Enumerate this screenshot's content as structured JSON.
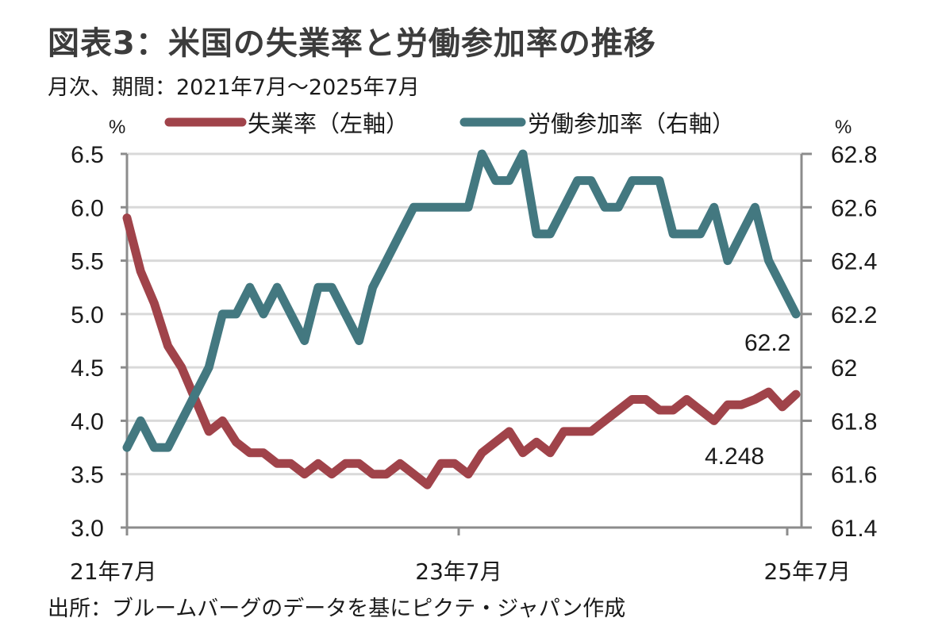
{
  "title": "図表3：米国の失業率と労働参加率の推移",
  "subtitle": "月次、期間：2021年7月～2025年7月",
  "source": "出所：ブルームバーグのデータを基にピクテ・ジャパン作成",
  "chart_data": {
    "type": "line",
    "title": "図表3：米国の失業率と労働参加率の推移",
    "subtitle": "月次、期間：2021年7月～2025年7月",
    "xlabel": "",
    "x_tick_labels": [
      "21年7月",
      "23年7月",
      "25年7月"
    ],
    "left_axis": {
      "unit": "%",
      "ylim": [
        3.0,
        6.5
      ],
      "ticks": [
        "6.5",
        "6.0",
        "5.5",
        "5.0",
        "4.5",
        "4.0",
        "3.5",
        "3.0"
      ]
    },
    "right_axis": {
      "unit": "%",
      "ylim": [
        61.4,
        62.8
      ],
      "ticks": [
        "62.8",
        "62.6",
        "62.4",
        "62.2",
        "62",
        "61.8",
        "61.6",
        "61.4"
      ]
    },
    "grid": "horizontal",
    "legend_position": "top",
    "series": [
      {
        "name": "失業率（左軸）",
        "axis": "left",
        "color": "#a0434a",
        "values": [
          5.9,
          5.4,
          5.1,
          4.7,
          4.5,
          4.2,
          3.9,
          4.0,
          3.8,
          3.7,
          3.7,
          3.6,
          3.6,
          3.5,
          3.6,
          3.5,
          3.6,
          3.6,
          3.5,
          3.5,
          3.6,
          3.5,
          3.4,
          3.6,
          3.6,
          3.5,
          3.7,
          3.8,
          3.9,
          3.7,
          3.8,
          3.7,
          3.9,
          3.9,
          3.9,
          4.0,
          4.1,
          4.2,
          4.2,
          4.1,
          4.1,
          4.2,
          4.1,
          4.0,
          4.15,
          4.15,
          4.2,
          4.27,
          4.13,
          4.248
        ],
        "end_label": "4.248"
      },
      {
        "name": "労働参加率（右軸）",
        "axis": "right",
        "color": "#437880",
        "values": [
          61.7,
          61.8,
          61.7,
          61.7,
          61.8,
          61.9,
          62.0,
          62.2,
          62.2,
          62.3,
          62.2,
          62.3,
          62.2,
          62.1,
          62.3,
          62.3,
          62.2,
          62.1,
          62.3,
          62.4,
          62.5,
          62.6,
          62.6,
          62.6,
          62.6,
          62.6,
          62.8,
          62.7,
          62.7,
          62.8,
          62.5,
          62.5,
          62.6,
          62.7,
          62.7,
          62.6,
          62.6,
          62.7,
          62.7,
          62.7,
          62.5,
          62.5,
          62.5,
          62.6,
          62.4,
          62.5,
          62.6,
          62.4,
          62.3,
          62.2
        ],
        "end_label": "62.2"
      }
    ]
  }
}
